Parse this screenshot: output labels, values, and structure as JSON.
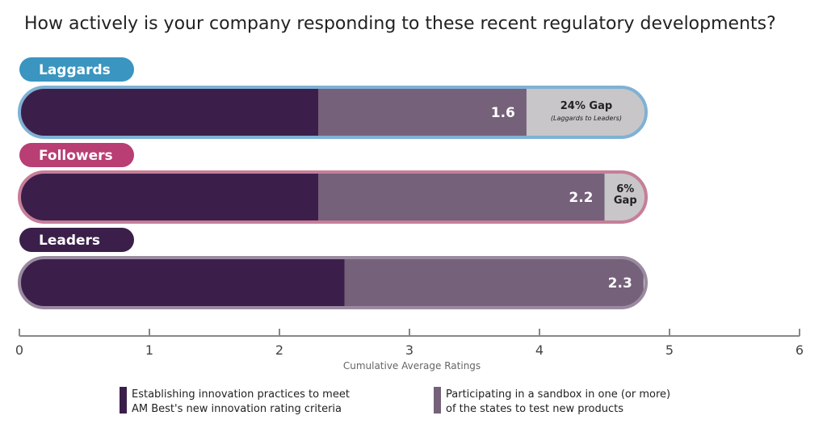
{
  "chart_data": {
    "type": "bar",
    "orientation": "horizontal",
    "stacked": true,
    "title": "How actively is your company responding to these recent regulatory developments?",
    "categories": [
      "Laggards",
      "Followers",
      "Leaders"
    ],
    "series": [
      {
        "name": "Establishing innovation practices to meet AM Best's new innovation rating criteria",
        "values": [
          2.3,
          2.3,
          2.5
        ]
      },
      {
        "name": "Participating in a sandbox in one (or more) of the states to test new products",
        "values": [
          1.6,
          2.2,
          2.3
        ]
      }
    ],
    "gaps": [
      {
        "category": "Laggards",
        "label": "24% Gap",
        "sublabel": "(Laggards to Leaders)"
      },
      {
        "category": "Followers",
        "label": "6% Gap"
      }
    ],
    "xlabel": "Cumulative Average Ratings",
    "xlim": [
      0,
      6
    ],
    "xticks": [
      "0",
      "1",
      "2",
      "3",
      "4",
      "5",
      "6"
    ],
    "legend_position": "bottom",
    "legend": [
      {
        "line1": "Establishing innovation practices to meet",
        "line2": "AM Best's new innovation rating criteria"
      },
      {
        "line1": "Participating in a sandbox in one (or more)",
        "line2": "of the states to test new products"
      }
    ],
    "colors": {
      "series1": "#3b1f4a",
      "series2": "#75617a",
      "gap": "#c8c6c8",
      "laggards": "#3a95c0",
      "followers": "#b83e74",
      "leaders": "#3b1f4a",
      "laggards_outline": "#7fb1d4",
      "followers_outline": "#c67e98",
      "leaders_outline": "#9a8aa0"
    }
  }
}
